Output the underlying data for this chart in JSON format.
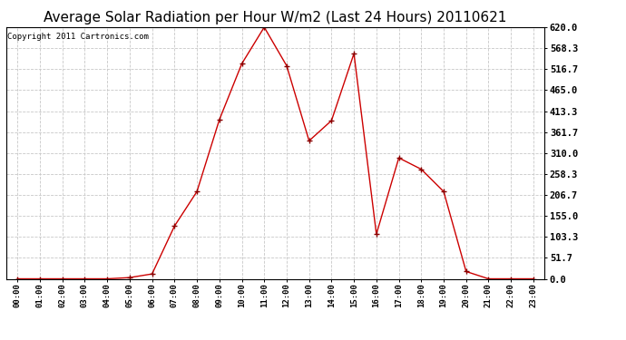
{
  "title": "Average Solar Radiation per Hour W/m2 (Last 24 Hours) 20110621",
  "copyright": "Copyright 2011 Cartronics.com",
  "x_labels": [
    "00:00",
    "01:00",
    "02:00",
    "03:00",
    "04:00",
    "05:00",
    "06:00",
    "07:00",
    "08:00",
    "09:00",
    "10:00",
    "11:00",
    "12:00",
    "13:00",
    "14:00",
    "15:00",
    "16:00",
    "17:00",
    "18:00",
    "19:00",
    "20:00",
    "21:00",
    "22:00",
    "23:00"
  ],
  "y_values": [
    0.0,
    0.0,
    0.0,
    0.0,
    0.0,
    3.0,
    12.0,
    130.0,
    215.0,
    392.0,
    530.0,
    620.0,
    525.0,
    340.0,
    390.0,
    555.0,
    110.0,
    298.0,
    270.0,
    215.0,
    18.0,
    0.0,
    0.0,
    0.0
  ],
  "line_color": "#cc0000",
  "marker": "+",
  "marker_color": "#880000",
  "bg_color": "#ffffff",
  "grid_color": "#c8c8c8",
  "title_fontsize": 11,
  "copyright_fontsize": 6.5,
  "y_min": 0.0,
  "y_max": 620.0,
  "y_ticks": [
    0.0,
    51.7,
    103.3,
    155.0,
    206.7,
    258.3,
    310.0,
    361.7,
    413.3,
    465.0,
    516.7,
    568.3,
    620.0
  ]
}
